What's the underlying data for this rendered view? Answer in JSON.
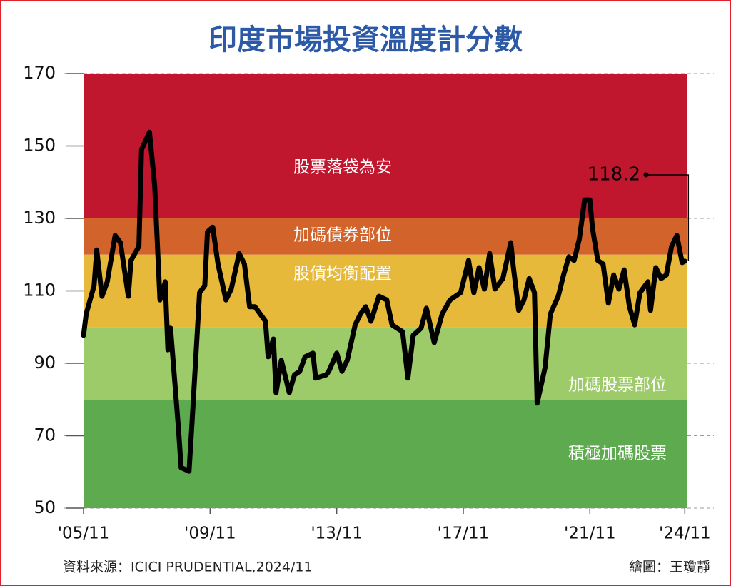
{
  "chart_data": {
    "type": "line",
    "title": "印度市場投資溫度計分數",
    "source": "資料來源：ICICI PRUDENTIAL,2024/11",
    "credit": "繪圖：王瓊靜",
    "color": "#000000",
    "ylim": [
      50,
      170
    ],
    "yticks": [
      50,
      70,
      90,
      110,
      130,
      150,
      170
    ],
    "grid": true,
    "xlim": [
      "2005-11",
      "2024-12"
    ],
    "xticks": [
      {
        "value": "2005-11",
        "label": "'05/11"
      },
      {
        "value": "2009-11",
        "label": "'09/11"
      },
      {
        "value": "2013-11",
        "label": "'13/11"
      },
      {
        "value": "2017-11",
        "label": "'17/11"
      },
      {
        "value": "2021-11",
        "label": "'21/11"
      },
      {
        "value": "2024-11",
        "label": "'24/11"
      }
    ],
    "bands": [
      {
        "from": 130,
        "to": 170,
        "color": "#c0172e",
        "label": "股票落袋為安"
      },
      {
        "from": 120,
        "to": 130,
        "color": "#d2642b",
        "label": "加碼債券部位"
      },
      {
        "from": 100,
        "to": 120,
        "color": "#e7b93a",
        "label": "股債均衡配置"
      },
      {
        "from": 80,
        "to": 100,
        "color": "#9ecb6a",
        "label": "加碼股票部位"
      },
      {
        "from": 50,
        "to": 80,
        "color": "#5daa4f",
        "label": "積極加碼股票"
      }
    ],
    "annotation": {
      "text": "118.2"
    },
    "x": [
      "2005-11",
      "2005-12",
      "2006-03",
      "2006-04",
      "2006-06",
      "2006-08",
      "2006-11",
      "2007-01",
      "2007-04",
      "2007-05",
      "2007-08",
      "2007-09",
      "2007-12",
      "2008-02",
      "2008-04",
      "2008-06",
      "2008-07",
      "2008-08",
      "2008-11",
      "2008-12",
      "2009-03",
      "2009-04",
      "2009-07",
      "2009-09",
      "2009-10",
      "2009-12",
      "2010-02",
      "2010-05",
      "2010-07",
      "2010-10",
      "2010-12",
      "2011-02",
      "2011-04",
      "2011-08",
      "2011-09",
      "2011-11",
      "2011-12",
      "2012-02",
      "2012-05",
      "2012-07",
      "2012-09",
      "2012-11",
      "2013-02",
      "2013-03",
      "2013-07",
      "2013-08",
      "2013-11",
      "2014-01",
      "2014-03",
      "2014-06",
      "2014-08",
      "2014-10",
      "2014-12",
      "2015-03",
      "2015-06",
      "2015-08",
      "2015-12",
      "2016-02",
      "2016-04",
      "2016-07",
      "2016-09",
      "2016-12",
      "2017-03",
      "2017-06",
      "2017-10",
      "2018-01",
      "2018-03",
      "2018-05",
      "2018-07",
      "2018-09",
      "2018-11",
      "2019-02",
      "2019-05",
      "2019-06",
      "2019-08",
      "2019-10",
      "2019-12",
      "2020-02",
      "2020-03",
      "2020-06",
      "2020-08",
      "2020-11",
      "2021-01",
      "2021-03",
      "2021-05",
      "2021-07",
      "2021-09",
      "2021-11",
      "2021-12",
      "2022-02",
      "2022-04",
      "2022-06",
      "2022-08",
      "2022-10",
      "2022-12",
      "2023-02",
      "2023-04",
      "2023-06",
      "2023-09",
      "2023-10",
      "2023-12",
      "2024-02",
      "2024-04",
      "2024-06",
      "2024-08",
      "2024-09",
      "2024-10",
      "2024-11"
    ],
    "values": [
      97.7,
      103.6,
      111.5,
      121.3,
      108.5,
      112.5,
      125.3,
      123.3,
      108.5,
      118.4,
      122.3,
      149,
      153.8,
      139,
      107.5,
      112.5,
      93.7,
      99.7,
      72,
      61.2,
      60.2,
      72,
      109.5,
      111.5,
      126.3,
      127.6,
      117.4,
      107.5,
      110.5,
      120.3,
      117.4,
      105.6,
      105.6,
      101.6,
      91.8,
      96.7,
      81.9,
      90.8,
      81.9,
      86.8,
      87.8,
      91.8,
      92.8,
      85.9,
      86.8,
      87.8,
      92.8,
      87.8,
      90.8,
      100.6,
      103.6,
      105.6,
      101.6,
      108.5,
      107.5,
      100.6,
      98.7,
      85.9,
      97.7,
      99.7,
      105.2,
      95.7,
      103.6,
      107.5,
      109.5,
      118.4,
      109.5,
      116.4,
      110.5,
      120.3,
      110.5,
      113.4,
      123.3,
      116.4,
      104.6,
      107.5,
      113.4,
      109.5,
      79,
      88.8,
      103.6,
      108.5,
      114.4,
      119.4,
      118.4,
      124.3,
      135.1,
      135.1,
      127.2,
      118.4,
      117.4,
      106.6,
      114.4,
      110.5,
      115.8,
      105.6,
      100.6,
      109.5,
      112.5,
      104.6,
      116.4,
      113.4,
      114.4,
      122.3,
      125.3,
      121.5,
      117.8,
      118.2
    ]
  }
}
